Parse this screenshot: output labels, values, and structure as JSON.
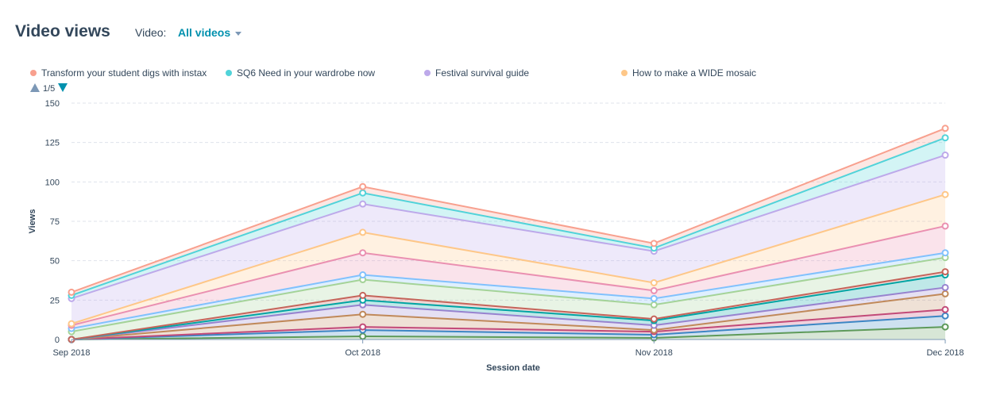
{
  "header": {
    "title": "Video views",
    "filter_label": "Video:",
    "filter_value": "All videos"
  },
  "legend_pager": {
    "text": "1/5"
  },
  "chart_data": {
    "type": "area",
    "stacked": true,
    "title": "Video views",
    "xlabel": "Session date",
    "ylabel": "Views",
    "categories": [
      "Sep 2018",
      "Oct 2018",
      "Nov 2018",
      "Dec 2018"
    ],
    "ylim": [
      0,
      150
    ],
    "yticks": [
      0,
      25,
      50,
      75,
      100,
      125,
      150
    ],
    "grid": true,
    "legend_position": "top",
    "series": [
      {
        "name": "Transform your student digs with instax",
        "color": "#f8a08e",
        "values": [
          2,
          4,
          3,
          6
        ],
        "in_legend": true
      },
      {
        "name": "SQ6 Need in your wardrobe now",
        "color": "#51d3d9",
        "values": [
          2,
          7,
          2,
          11
        ],
        "in_legend": true
      },
      {
        "name": "Festival survival guide",
        "color": "#bda9ea",
        "values": [
          16,
          18,
          20,
          25
        ],
        "in_legend": true
      },
      {
        "name": "How to make a WIDE mosaic",
        "color": "#fec788",
        "values": [
          1,
          13,
          5,
          20
        ],
        "in_legend": true
      },
      {
        "name": "",
        "color": "#ea90b1",
        "values": [
          2,
          14,
          5,
          17
        ],
        "in_legend": false
      },
      {
        "name": "",
        "color": "#81c1fd",
        "values": [
          2,
          3,
          4,
          3
        ],
        "in_legend": false
      },
      {
        "name": "",
        "color": "#a4d398",
        "values": [
          5,
          10,
          9,
          9
        ],
        "in_legend": false
      },
      {
        "name": "",
        "color": "#c5645a",
        "values": [
          0,
          3,
          1,
          2
        ],
        "in_legend": false
      },
      {
        "name": "",
        "color": "#00a4a3",
        "values": [
          0,
          3,
          3,
          8
        ],
        "in_legend": false
      },
      {
        "name": "",
        "color": "#9783cf",
        "values": [
          0,
          6,
          3,
          4
        ],
        "in_legend": false
      },
      {
        "name": "",
        "color": "#c0895a",
        "values": [
          0,
          8,
          1,
          10
        ],
        "in_legend": false
      },
      {
        "name": "",
        "color": "#c24a78",
        "values": [
          0,
          2,
          2,
          4
        ],
        "in_legend": false
      },
      {
        "name": "",
        "color": "#3c86c4",
        "values": [
          0,
          4,
          2,
          7
        ],
        "in_legend": false
      },
      {
        "name": "",
        "color": "#5e9a5a",
        "values": [
          0,
          2,
          1,
          8
        ],
        "in_legend": false
      }
    ]
  }
}
